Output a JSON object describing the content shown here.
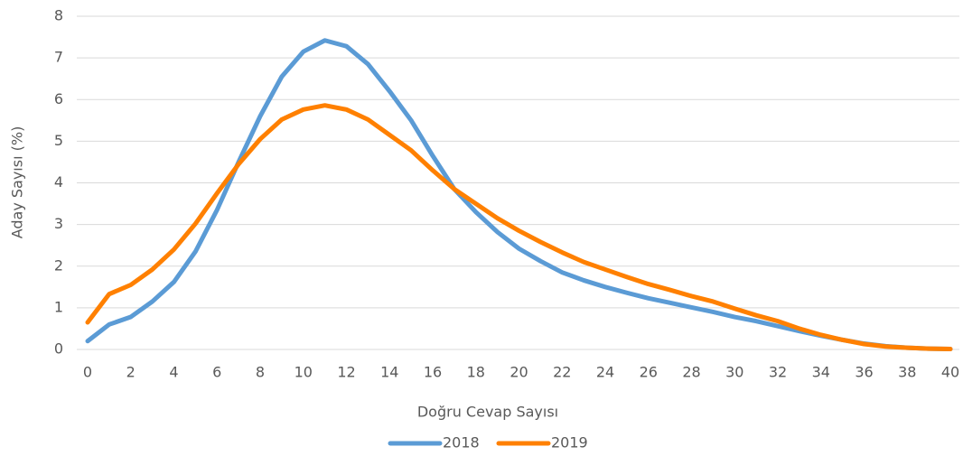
{
  "chart_data": {
    "type": "line",
    "xlabel": "Doğru Cevap Sayısı",
    "ylabel": "Aday Sayısı (%)",
    "x": [
      0,
      1,
      2,
      3,
      4,
      5,
      6,
      7,
      8,
      9,
      10,
      11,
      12,
      13,
      14,
      15,
      16,
      17,
      18,
      19,
      20,
      21,
      22,
      23,
      24,
      25,
      26,
      27,
      28,
      29,
      30,
      31,
      32,
      33,
      34,
      35,
      36,
      37,
      38,
      39,
      40
    ],
    "series": [
      {
        "name": "2018",
        "color": "#5b9bd5",
        "values": [
          0.2,
          0.6,
          0.78,
          1.15,
          1.62,
          2.35,
          3.35,
          4.5,
          5.6,
          6.55,
          7.15,
          7.42,
          7.28,
          6.85,
          6.2,
          5.5,
          4.65,
          3.85,
          3.3,
          2.82,
          2.42,
          2.12,
          1.85,
          1.66,
          1.5,
          1.36,
          1.23,
          1.12,
          1.01,
          0.9,
          0.78,
          0.68,
          0.56,
          0.44,
          0.33,
          0.23,
          0.14,
          0.08,
          0.04,
          0.02,
          0.01
        ]
      },
      {
        "name": "2019",
        "color": "#ff8000",
        "values": [
          0.65,
          1.33,
          1.55,
          1.92,
          2.4,
          3.02,
          3.75,
          4.45,
          5.05,
          5.52,
          5.76,
          5.86,
          5.76,
          5.52,
          5.15,
          4.78,
          4.3,
          3.85,
          3.5,
          3.15,
          2.85,
          2.58,
          2.33,
          2.1,
          1.92,
          1.74,
          1.57,
          1.43,
          1.28,
          1.15,
          0.98,
          0.82,
          0.68,
          0.5,
          0.35,
          0.23,
          0.13,
          0.07,
          0.04,
          0.02,
          0.01
        ]
      }
    ],
    "xlim": [
      0,
      40
    ],
    "xticks": [
      0,
      2,
      4,
      6,
      8,
      10,
      12,
      14,
      16,
      18,
      20,
      22,
      24,
      26,
      28,
      30,
      32,
      34,
      36,
      38,
      40
    ],
    "ylim": [
      0,
      8
    ],
    "yticks": [
      0,
      1,
      2,
      3,
      4,
      5,
      6,
      7,
      8
    ],
    "grid": true,
    "legend": "bottom"
  }
}
